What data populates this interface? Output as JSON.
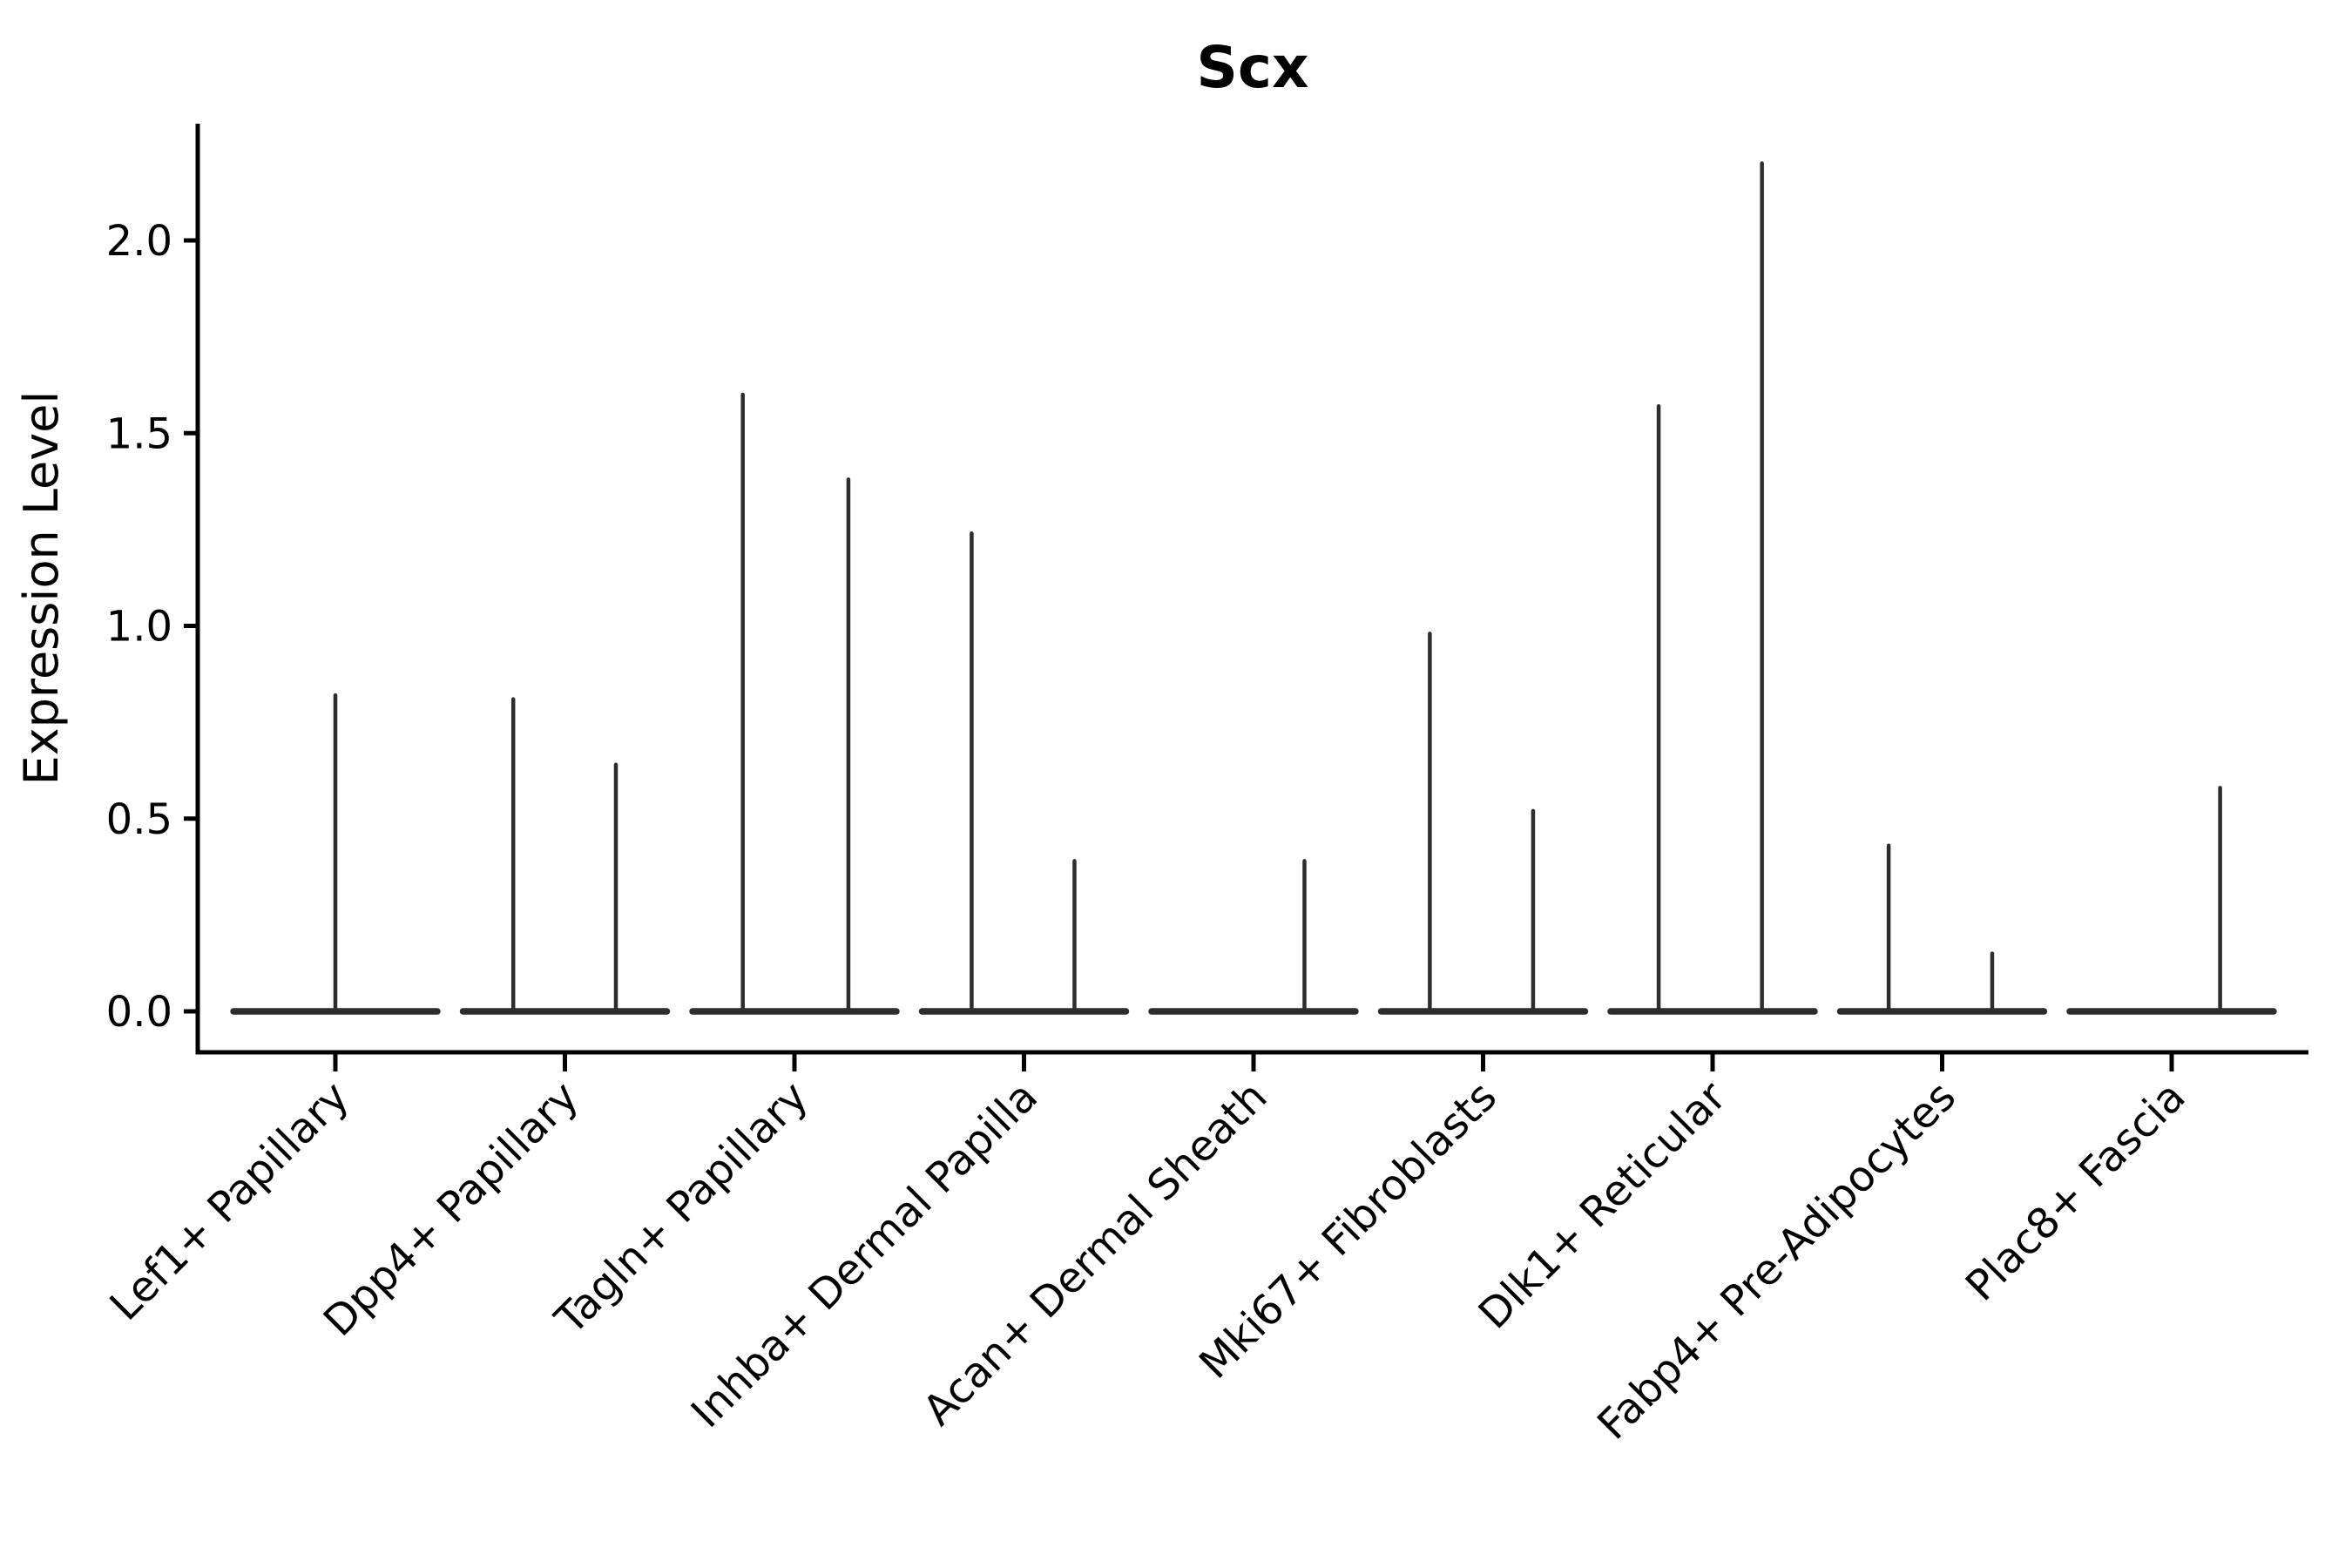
{
  "chart_data": {
    "type": "violin",
    "title": "Scx",
    "ylabel": "Expression Level",
    "xlabel": "",
    "ytick_values": [
      0.0,
      0.5,
      1.0,
      1.5,
      2.0
    ],
    "ytick_labels": [
      "0.0",
      "0.5",
      "1.0",
      "1.5",
      "2.0"
    ],
    "ylim": [
      -0.11,
      2.3
    ],
    "grid": false,
    "legend": null,
    "colors": {
      "violin_line": "#2d2d2d",
      "axis": "#000000",
      "text": "#000000",
      "background": "#ffffff"
    },
    "categories": [
      "Lef1+ Papillary",
      "Dpp4+ Papillary",
      "Tagln+ Papillary",
      "Inhba+ Dermal Papilla",
      "Acan+ Dermal Sheath",
      "Mki67+ Fibroblasts",
      "Dlk1+ Reticular",
      "Fabp4+ Pre-Adipocytes",
      "Plac8+ Fascia"
    ],
    "violins": [
      {
        "category": "Lef1+ Papillary",
        "base_value": 0.0,
        "spikes": [
          {
            "pos": 0.0,
            "max": 0.82
          }
        ]
      },
      {
        "category": "Dpp4+ Papillary",
        "base_value": 0.0,
        "spikes": [
          {
            "pos": -0.225,
            "max": 0.81
          },
          {
            "pos": 0.222,
            "max": 0.64
          }
        ]
      },
      {
        "category": "Tagln+ Papillary",
        "base_value": 0.0,
        "spikes": [
          {
            "pos": -0.225,
            "max": 1.6
          },
          {
            "pos": 0.235,
            "max": 1.38
          }
        ]
      },
      {
        "category": "Inhba+ Dermal Papilla",
        "base_value": 0.0,
        "spikes": [
          {
            "pos": -0.228,
            "max": 1.24
          },
          {
            "pos": 0.22,
            "max": 0.39
          }
        ]
      },
      {
        "category": "Acan+ Dermal Sheath",
        "base_value": 0.0,
        "spikes": [
          {
            "pos": 0.222,
            "max": 0.39
          }
        ]
      },
      {
        "category": "Mki67+ Fibroblasts",
        "base_value": 0.0,
        "spikes": [
          {
            "pos": -0.232,
            "max": 0.98
          },
          {
            "pos": 0.218,
            "max": 0.52
          }
        ]
      },
      {
        "category": "Dlk1+ Reticular",
        "base_value": 0.0,
        "spikes": [
          {
            "pos": -0.235,
            "max": 1.57
          },
          {
            "pos": 0.215,
            "max": 2.2
          }
        ]
      },
      {
        "category": "Fabp4+ Pre-Adipocytes",
        "base_value": 0.0,
        "spikes": [
          {
            "pos": -0.233,
            "max": 0.43
          },
          {
            "pos": 0.218,
            "max": 0.15
          }
        ]
      },
      {
        "category": "Plac8+ Fascia",
        "base_value": 0.0,
        "spikes": [
          {
            "pos": 0.211,
            "max": 0.58
          }
        ]
      }
    ]
  }
}
